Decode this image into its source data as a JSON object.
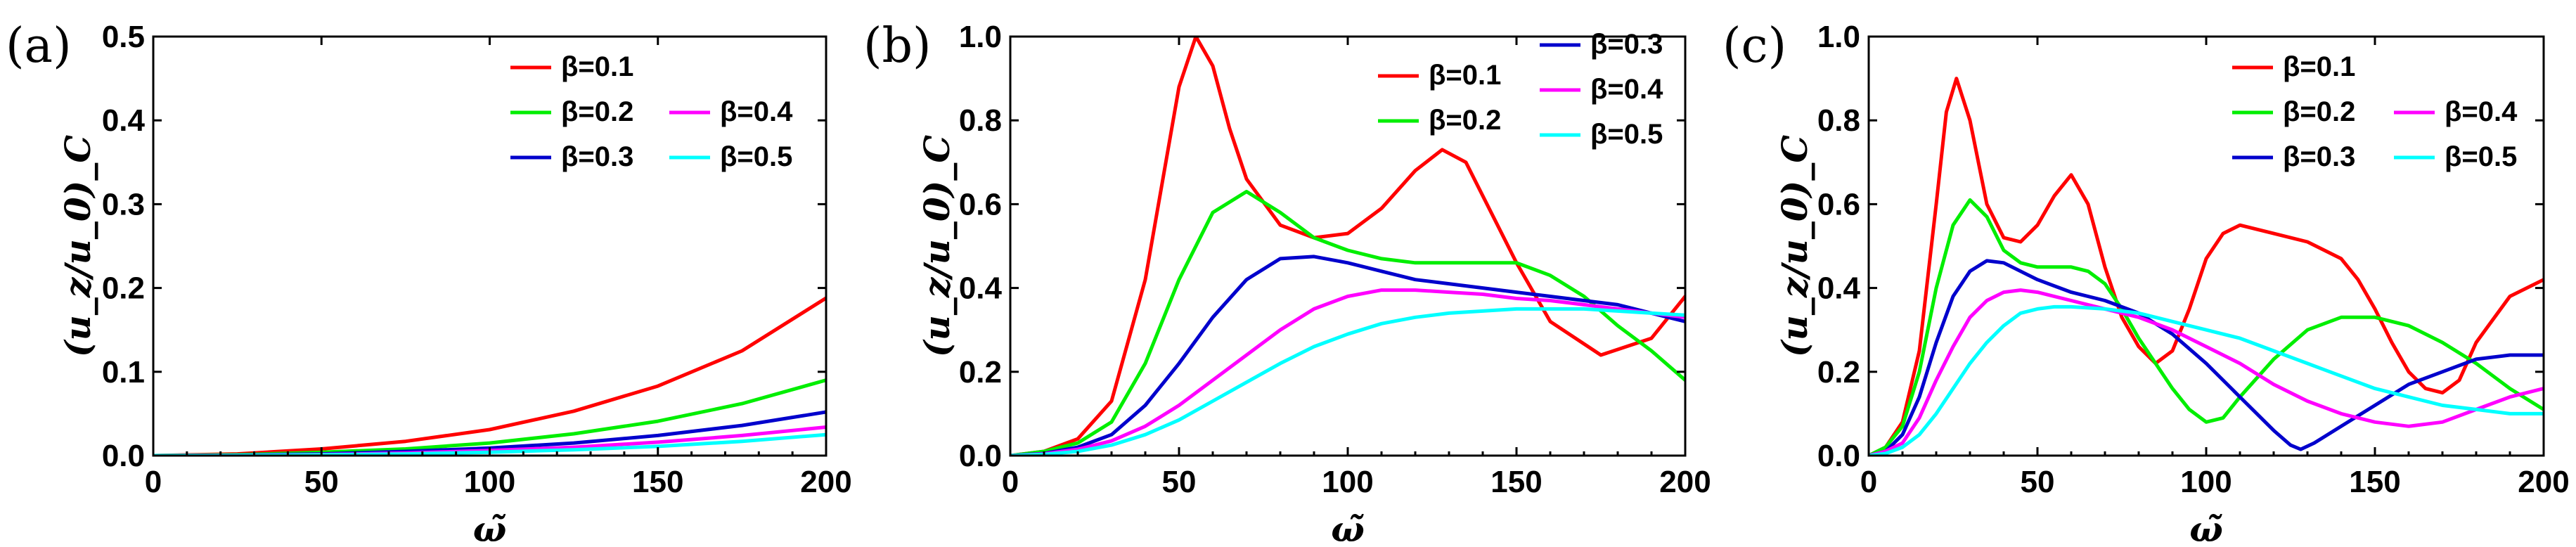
{
  "chart_data": [
    {
      "type": "line",
      "panel_label": "(a)",
      "xlabel": "ω̃",
      "ylabel": "(u_z/u_0)_C",
      "xlim": [
        0,
        200
      ],
      "ylim": [
        0,
        0.5
      ],
      "xticks": [
        0,
        50,
        100,
        150,
        200
      ],
      "xtick_labels": [
        "0",
        "50",
        "100",
        "150",
        "200"
      ],
      "yticks": [
        0,
        0.1,
        0.2,
        0.3,
        0.4,
        0.5
      ],
      "ytick_labels": [
        "0.0",
        "0.1",
        "0.2",
        "0.3",
        "0.4",
        "0.5"
      ],
      "legend_position": "top-right",
      "x": [
        0,
        25,
        50,
        75,
        100,
        125,
        150,
        175,
        200
      ],
      "series": [
        {
          "name": "β=0.1",
          "color": "#ff0000",
          "values": [
            0,
            0.002,
            0.008,
            0.017,
            0.031,
            0.053,
            0.083,
            0.125,
            0.188
          ]
        },
        {
          "name": "β=0.2",
          "color": "#00ee00",
          "values": [
            0,
            0.001,
            0.004,
            0.008,
            0.015,
            0.026,
            0.041,
            0.062,
            0.09
          ]
        },
        {
          "name": "β=0.3",
          "color": "#0000cc",
          "values": [
            0,
            0.0005,
            0.002,
            0.005,
            0.009,
            0.015,
            0.024,
            0.036,
            0.052
          ]
        },
        {
          "name": "β=0.4",
          "color": "#ff00ff",
          "values": [
            0,
            0.0003,
            0.0013,
            0.003,
            0.006,
            0.01,
            0.016,
            0.024,
            0.034
          ]
        },
        {
          "name": "β=0.5",
          "color": "#00ffff",
          "values": [
            0,
            0.0002,
            0.0009,
            0.002,
            0.004,
            0.007,
            0.011,
            0.017,
            0.025
          ]
        }
      ]
    },
    {
      "type": "line",
      "panel_label": "(b)",
      "xlabel": "ω̃",
      "ylabel": "(u_z/u_0)_C",
      "xlim": [
        0,
        200
      ],
      "ylim": [
        0,
        1.0
      ],
      "xticks": [
        0,
        50,
        100,
        150,
        200
      ],
      "xtick_labels": [
        "0",
        "50",
        "100",
        "150",
        "200"
      ],
      "yticks": [
        0,
        0.2,
        0.4,
        0.6,
        0.8,
        1.0
      ],
      "ytick_labels": [
        "0.0",
        "0.2",
        "0.4",
        "0.6",
        "0.8",
        "1.0"
      ],
      "legend_position": "top-right",
      "series": [
        {
          "name": "β=0.1",
          "color": "#ff0000",
          "x": [
            0,
            10,
            20,
            30,
            40,
            45,
            50,
            55,
            60,
            65,
            70,
            80,
            90,
            100,
            110,
            120,
            128,
            135,
            140,
            150,
            160,
            175,
            190,
            200
          ],
          "values": [
            0,
            0.01,
            0.04,
            0.13,
            0.42,
            0.65,
            0.88,
            1.0,
            0.93,
            0.78,
            0.66,
            0.55,
            0.52,
            0.53,
            0.59,
            0.68,
            0.73,
            0.7,
            0.62,
            0.46,
            0.32,
            0.24,
            0.28,
            0.38
          ]
        },
        {
          "name": "β=0.2",
          "color": "#00ee00",
          "x": [
            0,
            10,
            20,
            30,
            40,
            50,
            60,
            70,
            80,
            90,
            100,
            110,
            120,
            130,
            140,
            150,
            160,
            170,
            180,
            190,
            200
          ],
          "values": [
            0,
            0.01,
            0.03,
            0.08,
            0.22,
            0.42,
            0.58,
            0.63,
            0.58,
            0.52,
            0.49,
            0.47,
            0.46,
            0.46,
            0.46,
            0.46,
            0.43,
            0.38,
            0.31,
            0.25,
            0.18
          ]
        },
        {
          "name": "β=0.3",
          "color": "#0000cc",
          "x": [
            0,
            10,
            20,
            30,
            40,
            50,
            60,
            70,
            80,
            90,
            100,
            110,
            120,
            130,
            140,
            150,
            160,
            170,
            180,
            190,
            200
          ],
          "values": [
            0,
            0.005,
            0.02,
            0.05,
            0.12,
            0.22,
            0.33,
            0.42,
            0.47,
            0.475,
            0.46,
            0.44,
            0.42,
            0.41,
            0.4,
            0.39,
            0.38,
            0.37,
            0.36,
            0.34,
            0.32
          ]
        },
        {
          "name": "β=0.4",
          "color": "#ff00ff",
          "x": [
            0,
            10,
            20,
            30,
            40,
            50,
            60,
            70,
            80,
            90,
            100,
            110,
            120,
            130,
            140,
            150,
            160,
            170,
            180,
            190,
            200
          ],
          "values": [
            0,
            0.004,
            0.015,
            0.035,
            0.07,
            0.12,
            0.18,
            0.24,
            0.3,
            0.35,
            0.38,
            0.395,
            0.395,
            0.39,
            0.385,
            0.375,
            0.37,
            0.36,
            0.35,
            0.34,
            0.33
          ]
        },
        {
          "name": "β=0.5",
          "color": "#00ffff",
          "x": [
            0,
            10,
            20,
            30,
            40,
            50,
            60,
            70,
            80,
            90,
            100,
            110,
            120,
            130,
            140,
            150,
            160,
            170,
            180,
            190,
            200
          ],
          "values": [
            0,
            0.003,
            0.01,
            0.025,
            0.05,
            0.085,
            0.13,
            0.175,
            0.22,
            0.26,
            0.29,
            0.315,
            0.33,
            0.34,
            0.345,
            0.35,
            0.35,
            0.35,
            0.345,
            0.34,
            0.335
          ]
        }
      ]
    },
    {
      "type": "line",
      "panel_label": "(c)",
      "xlabel": "ω̃",
      "ylabel": "(u_z/u_0)_C",
      "xlim": [
        0,
        200
      ],
      "ylim": [
        0,
        1.0
      ],
      "xticks": [
        0,
        50,
        100,
        150,
        200
      ],
      "xtick_labels": [
        "0",
        "50",
        "100",
        "150",
        "200"
      ],
      "yticks": [
        0,
        0.2,
        0.4,
        0.6,
        0.8,
        1.0
      ],
      "ytick_labels": [
        "0.0",
        "0.2",
        "0.4",
        "0.6",
        "0.8",
        "1.0"
      ],
      "legend_position": "top-right",
      "series": [
        {
          "name": "β=0.1",
          "color": "#ff0000",
          "x": [
            0,
            5,
            10,
            15,
            20,
            23,
            26,
            30,
            35,
            40,
            45,
            50,
            55,
            60,
            65,
            70,
            75,
            80,
            85,
            90,
            95,
            100,
            105,
            110,
            120,
            130,
            140,
            145,
            150,
            155,
            160,
            165,
            170,
            175,
            180,
            190,
            200
          ],
          "values": [
            0,
            0.02,
            0.08,
            0.25,
            0.6,
            0.82,
            0.9,
            0.8,
            0.6,
            0.52,
            0.51,
            0.55,
            0.62,
            0.67,
            0.6,
            0.45,
            0.33,
            0.26,
            0.22,
            0.25,
            0.35,
            0.47,
            0.53,
            0.55,
            0.53,
            0.51,
            0.47,
            0.42,
            0.35,
            0.27,
            0.2,
            0.16,
            0.15,
            0.18,
            0.27,
            0.38,
            0.42
          ]
        },
        {
          "name": "β=0.2",
          "color": "#00ee00",
          "x": [
            0,
            5,
            10,
            15,
            20,
            25,
            30,
            35,
            40,
            45,
            50,
            55,
            60,
            65,
            70,
            75,
            80,
            85,
            90,
            95,
            100,
            105,
            110,
            120,
            130,
            140,
            150,
            160,
            170,
            180,
            190,
            200
          ],
          "values": [
            0,
            0.02,
            0.07,
            0.2,
            0.4,
            0.55,
            0.61,
            0.57,
            0.49,
            0.46,
            0.45,
            0.45,
            0.45,
            0.44,
            0.41,
            0.35,
            0.28,
            0.22,
            0.16,
            0.11,
            0.08,
            0.09,
            0.14,
            0.23,
            0.3,
            0.33,
            0.33,
            0.31,
            0.27,
            0.22,
            0.16,
            0.11
          ]
        },
        {
          "name": "β=0.3",
          "color": "#0000cc",
          "x": [
            0,
            5,
            10,
            15,
            20,
            25,
            30,
            35,
            40,
            45,
            50,
            60,
            70,
            80,
            90,
            100,
            110,
            120,
            125,
            128,
            132,
            140,
            150,
            160,
            170,
            180,
            190,
            200
          ],
          "values": [
            0,
            0.01,
            0.05,
            0.14,
            0.27,
            0.38,
            0.44,
            0.465,
            0.46,
            0.44,
            0.42,
            0.39,
            0.37,
            0.34,
            0.29,
            0.22,
            0.14,
            0.06,
            0.025,
            0.015,
            0.03,
            0.07,
            0.12,
            0.17,
            0.2,
            0.23,
            0.24,
            0.24
          ]
        },
        {
          "name": "β=0.4",
          "color": "#ff00ff",
          "x": [
            0,
            5,
            10,
            15,
            20,
            25,
            30,
            35,
            40,
            45,
            50,
            60,
            70,
            80,
            90,
            100,
            110,
            120,
            130,
            140,
            150,
            160,
            170,
            180,
            190,
            200
          ],
          "values": [
            0,
            0.01,
            0.03,
            0.09,
            0.18,
            0.26,
            0.33,
            0.37,
            0.39,
            0.395,
            0.39,
            0.37,
            0.35,
            0.33,
            0.3,
            0.26,
            0.22,
            0.17,
            0.13,
            0.1,
            0.08,
            0.07,
            0.08,
            0.11,
            0.14,
            0.16
          ]
        },
        {
          "name": "β=0.5",
          "color": "#00ffff",
          "x": [
            0,
            5,
            10,
            15,
            20,
            25,
            30,
            35,
            40,
            45,
            50,
            55,
            60,
            70,
            80,
            90,
            100,
            110,
            120,
            130,
            140,
            150,
            160,
            170,
            180,
            190,
            200
          ],
          "values": [
            0,
            0.005,
            0.02,
            0.05,
            0.1,
            0.16,
            0.22,
            0.27,
            0.31,
            0.34,
            0.35,
            0.355,
            0.355,
            0.35,
            0.34,
            0.32,
            0.3,
            0.28,
            0.25,
            0.22,
            0.19,
            0.16,
            0.14,
            0.12,
            0.11,
            0.1,
            0.1
          ]
        }
      ]
    }
  ]
}
